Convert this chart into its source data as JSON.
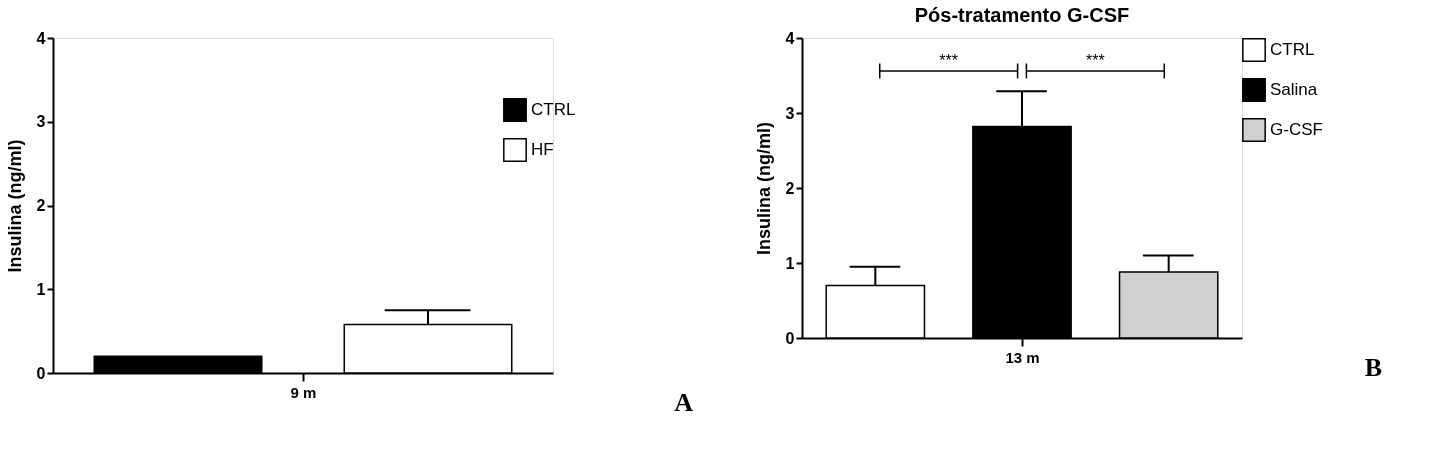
{
  "chart_data": [
    {
      "type": "bar",
      "ylabel": "Insulina (ng/ml)",
      "categories": [
        "9 m"
      ],
      "series": [
        {
          "name": "CTRL",
          "color": "#000000",
          "values": [
            0.2
          ]
        },
        {
          "name": "HF",
          "color": "#ffffff",
          "values": [
            0.58
          ],
          "errors": [
            [
              0.58,
              0.75
            ]
          ]
        }
      ],
      "ylim": [
        0,
        4
      ],
      "yticks": [
        0,
        1,
        2,
        3,
        4
      ],
      "legend": "right",
      "annotations": [
        "A"
      ]
    },
    {
      "type": "bar",
      "title": "Pós-tratamento G-CSF",
      "ylabel": "Insulina (ng/ml)",
      "categories": [
        "13 m"
      ],
      "series": [
        {
          "name": "CTRL",
          "color": "#ffffff",
          "values": [
            0.7
          ],
          "errors": [
            [
              0.7,
              0.95
            ]
          ]
        },
        {
          "name": "Salina",
          "color": "#000000",
          "values": [
            2.82
          ],
          "errors": [
            [
              2.82,
              3.29
            ]
          ]
        },
        {
          "name": "G-CSF",
          "color": "#d0d0d0",
          "values": [
            0.88
          ],
          "errors": [
            [
              0.88,
              1.1
            ]
          ]
        }
      ],
      "ylim": [
        0,
        4
      ],
      "yticks": [
        0,
        1,
        2,
        3,
        4
      ],
      "legend": "top right",
      "annotations": [
        "***",
        "***",
        "B"
      ]
    }
  ]
}
